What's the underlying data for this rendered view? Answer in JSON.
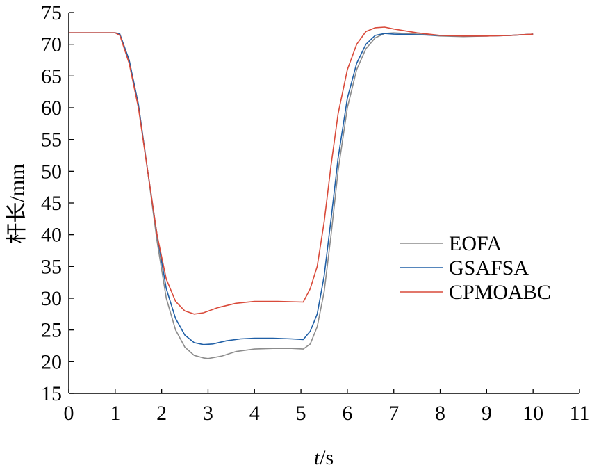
{
  "chart_data": {
    "type": "line",
    "title": "",
    "xlabel_italic": "t",
    "xlabel_rest": "/s",
    "ylabel": "杆长/mm",
    "xlim": [
      0,
      11
    ],
    "ylim": [
      15,
      75
    ],
    "x_ticks": [
      "0",
      "1",
      "2",
      "3",
      "4",
      "5",
      "6",
      "7",
      "8",
      "9",
      "10",
      "11"
    ],
    "y_ticks": [
      "15",
      "20",
      "25",
      "30",
      "35",
      "40",
      "45",
      "50",
      "55",
      "60",
      "65",
      "70",
      "75"
    ],
    "grid": false,
    "legend_position": "right",
    "series": [
      {
        "name": "EOFA",
        "color": "#8c8c8c",
        "points": [
          [
            0,
            71.8
          ],
          [
            1.0,
            71.8
          ],
          [
            1.1,
            71.6
          ],
          [
            1.3,
            67.5
          ],
          [
            1.5,
            60.5
          ],
          [
            1.7,
            50
          ],
          [
            1.9,
            39
          ],
          [
            2.1,
            30
          ],
          [
            2.3,
            25
          ],
          [
            2.5,
            22.3
          ],
          [
            2.7,
            21
          ],
          [
            2.9,
            20.6
          ],
          [
            3.0,
            20.5
          ],
          [
            3.3,
            20.9
          ],
          [
            3.6,
            21.6
          ],
          [
            4.0,
            22
          ],
          [
            4.4,
            22.1
          ],
          [
            4.8,
            22.1
          ],
          [
            5.05,
            22.0
          ],
          [
            5.2,
            22.8
          ],
          [
            5.35,
            25.5
          ],
          [
            5.5,
            31
          ],
          [
            5.65,
            40
          ],
          [
            5.8,
            50
          ],
          [
            6.0,
            60
          ],
          [
            6.2,
            66
          ],
          [
            6.4,
            69.3
          ],
          [
            6.6,
            71
          ],
          [
            6.8,
            71.7
          ],
          [
            7.0,
            71.8
          ],
          [
            7.5,
            71.6
          ],
          [
            8.0,
            71.3
          ],
          [
            8.5,
            71.2
          ],
          [
            9.0,
            71.3
          ],
          [
            9.5,
            71.4
          ],
          [
            10.0,
            71.6
          ]
        ]
      },
      {
        "name": "GSAFSA",
        "color": "#1f5fa6",
        "points": [
          [
            0,
            71.8
          ],
          [
            1.0,
            71.8
          ],
          [
            1.1,
            71.6
          ],
          [
            1.3,
            67.5
          ],
          [
            1.5,
            60.5
          ],
          [
            1.7,
            50
          ],
          [
            1.9,
            40
          ],
          [
            2.1,
            31.5
          ],
          [
            2.3,
            26.8
          ],
          [
            2.5,
            24.2
          ],
          [
            2.7,
            23.0
          ],
          [
            2.9,
            22.7
          ],
          [
            3.1,
            22.8
          ],
          [
            3.4,
            23.3
          ],
          [
            3.7,
            23.6
          ],
          [
            4.0,
            23.7
          ],
          [
            4.4,
            23.7
          ],
          [
            4.8,
            23.6
          ],
          [
            5.05,
            23.5
          ],
          [
            5.2,
            24.8
          ],
          [
            5.35,
            27.5
          ],
          [
            5.5,
            33.5
          ],
          [
            5.65,
            42.5
          ],
          [
            5.8,
            52
          ],
          [
            6.0,
            61.5
          ],
          [
            6.2,
            67
          ],
          [
            6.4,
            70
          ],
          [
            6.6,
            71.4
          ],
          [
            6.8,
            71.7
          ],
          [
            7.0,
            71.6
          ],
          [
            7.5,
            71.5
          ],
          [
            8.0,
            71.4
          ],
          [
            8.5,
            71.3
          ],
          [
            9.0,
            71.3
          ],
          [
            9.5,
            71.4
          ],
          [
            10.0,
            71.6
          ]
        ]
      },
      {
        "name": "CPMOABC",
        "color": "#d94a3a",
        "points": [
          [
            0,
            71.8
          ],
          [
            1.0,
            71.8
          ],
          [
            1.1,
            71.4
          ],
          [
            1.3,
            67
          ],
          [
            1.5,
            60
          ],
          [
            1.7,
            50
          ],
          [
            1.9,
            40
          ],
          [
            2.1,
            33
          ],
          [
            2.3,
            29.5
          ],
          [
            2.5,
            28
          ],
          [
            2.7,
            27.5
          ],
          [
            2.9,
            27.7
          ],
          [
            3.2,
            28.5
          ],
          [
            3.6,
            29.2
          ],
          [
            4.0,
            29.5
          ],
          [
            4.5,
            29.5
          ],
          [
            5.05,
            29.4
          ],
          [
            5.2,
            31.5
          ],
          [
            5.35,
            35
          ],
          [
            5.5,
            42
          ],
          [
            5.65,
            51
          ],
          [
            5.8,
            59
          ],
          [
            6.0,
            66
          ],
          [
            6.2,
            70
          ],
          [
            6.4,
            72.0
          ],
          [
            6.6,
            72.6
          ],
          [
            6.8,
            72.7
          ],
          [
            7.0,
            72.4
          ],
          [
            7.5,
            71.8
          ],
          [
            8.0,
            71.4
          ],
          [
            8.5,
            71.3
          ],
          [
            9.0,
            71.3
          ],
          [
            9.5,
            71.4
          ],
          [
            10.0,
            71.6
          ]
        ]
      }
    ]
  }
}
